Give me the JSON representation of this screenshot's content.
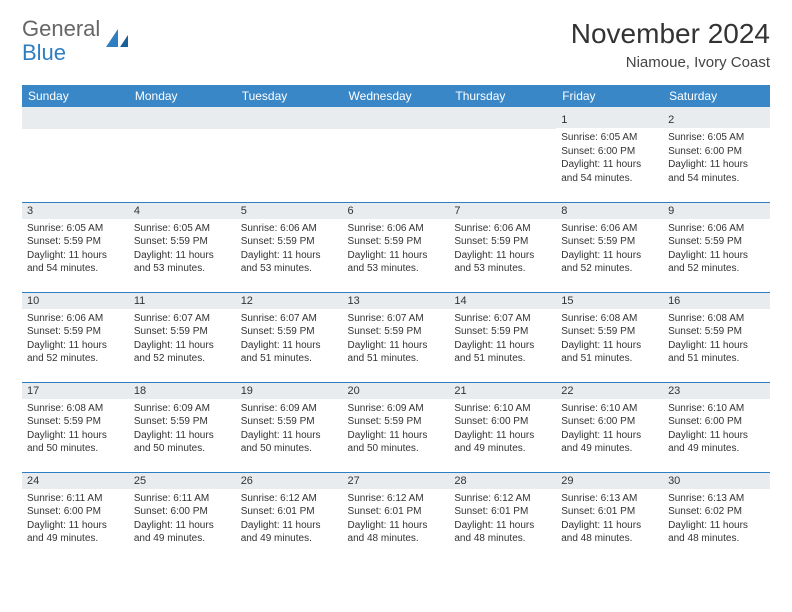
{
  "logo": {
    "general": "General",
    "blue": "Blue"
  },
  "title": "November 2024",
  "subtitle": "Niamoue, Ivory Coast",
  "colors": {
    "header_bg": "#3a87c8",
    "header_fg": "#ffffff",
    "daynum_bg": "#e9ecef",
    "cell_border": "#2f7ec2",
    "page_bg": "#ffffff",
    "text": "#333333",
    "logo_blue": "#2f7ec2",
    "logo_gray": "#666666"
  },
  "weekdays": [
    "Sunday",
    "Monday",
    "Tuesday",
    "Wednesday",
    "Thursday",
    "Friday",
    "Saturday"
  ],
  "weeks": [
    [
      {
        "n": "",
        "sr": "",
        "ss": "",
        "dl": ""
      },
      {
        "n": "",
        "sr": "",
        "ss": "",
        "dl": ""
      },
      {
        "n": "",
        "sr": "",
        "ss": "",
        "dl": ""
      },
      {
        "n": "",
        "sr": "",
        "ss": "",
        "dl": ""
      },
      {
        "n": "",
        "sr": "",
        "ss": "",
        "dl": ""
      },
      {
        "n": "1",
        "sr": "Sunrise: 6:05 AM",
        "ss": "Sunset: 6:00 PM",
        "dl": "Daylight: 11 hours and 54 minutes."
      },
      {
        "n": "2",
        "sr": "Sunrise: 6:05 AM",
        "ss": "Sunset: 6:00 PM",
        "dl": "Daylight: 11 hours and 54 minutes."
      }
    ],
    [
      {
        "n": "3",
        "sr": "Sunrise: 6:05 AM",
        "ss": "Sunset: 5:59 PM",
        "dl": "Daylight: 11 hours and 54 minutes."
      },
      {
        "n": "4",
        "sr": "Sunrise: 6:05 AM",
        "ss": "Sunset: 5:59 PM",
        "dl": "Daylight: 11 hours and 53 minutes."
      },
      {
        "n": "5",
        "sr": "Sunrise: 6:06 AM",
        "ss": "Sunset: 5:59 PM",
        "dl": "Daylight: 11 hours and 53 minutes."
      },
      {
        "n": "6",
        "sr": "Sunrise: 6:06 AM",
        "ss": "Sunset: 5:59 PM",
        "dl": "Daylight: 11 hours and 53 minutes."
      },
      {
        "n": "7",
        "sr": "Sunrise: 6:06 AM",
        "ss": "Sunset: 5:59 PM",
        "dl": "Daylight: 11 hours and 53 minutes."
      },
      {
        "n": "8",
        "sr": "Sunrise: 6:06 AM",
        "ss": "Sunset: 5:59 PM",
        "dl": "Daylight: 11 hours and 52 minutes."
      },
      {
        "n": "9",
        "sr": "Sunrise: 6:06 AM",
        "ss": "Sunset: 5:59 PM",
        "dl": "Daylight: 11 hours and 52 minutes."
      }
    ],
    [
      {
        "n": "10",
        "sr": "Sunrise: 6:06 AM",
        "ss": "Sunset: 5:59 PM",
        "dl": "Daylight: 11 hours and 52 minutes."
      },
      {
        "n": "11",
        "sr": "Sunrise: 6:07 AM",
        "ss": "Sunset: 5:59 PM",
        "dl": "Daylight: 11 hours and 52 minutes."
      },
      {
        "n": "12",
        "sr": "Sunrise: 6:07 AM",
        "ss": "Sunset: 5:59 PM",
        "dl": "Daylight: 11 hours and 51 minutes."
      },
      {
        "n": "13",
        "sr": "Sunrise: 6:07 AM",
        "ss": "Sunset: 5:59 PM",
        "dl": "Daylight: 11 hours and 51 minutes."
      },
      {
        "n": "14",
        "sr": "Sunrise: 6:07 AM",
        "ss": "Sunset: 5:59 PM",
        "dl": "Daylight: 11 hours and 51 minutes."
      },
      {
        "n": "15",
        "sr": "Sunrise: 6:08 AM",
        "ss": "Sunset: 5:59 PM",
        "dl": "Daylight: 11 hours and 51 minutes."
      },
      {
        "n": "16",
        "sr": "Sunrise: 6:08 AM",
        "ss": "Sunset: 5:59 PM",
        "dl": "Daylight: 11 hours and 51 minutes."
      }
    ],
    [
      {
        "n": "17",
        "sr": "Sunrise: 6:08 AM",
        "ss": "Sunset: 5:59 PM",
        "dl": "Daylight: 11 hours and 50 minutes."
      },
      {
        "n": "18",
        "sr": "Sunrise: 6:09 AM",
        "ss": "Sunset: 5:59 PM",
        "dl": "Daylight: 11 hours and 50 minutes."
      },
      {
        "n": "19",
        "sr": "Sunrise: 6:09 AM",
        "ss": "Sunset: 5:59 PM",
        "dl": "Daylight: 11 hours and 50 minutes."
      },
      {
        "n": "20",
        "sr": "Sunrise: 6:09 AM",
        "ss": "Sunset: 5:59 PM",
        "dl": "Daylight: 11 hours and 50 minutes."
      },
      {
        "n": "21",
        "sr": "Sunrise: 6:10 AM",
        "ss": "Sunset: 6:00 PM",
        "dl": "Daylight: 11 hours and 49 minutes."
      },
      {
        "n": "22",
        "sr": "Sunrise: 6:10 AM",
        "ss": "Sunset: 6:00 PM",
        "dl": "Daylight: 11 hours and 49 minutes."
      },
      {
        "n": "23",
        "sr": "Sunrise: 6:10 AM",
        "ss": "Sunset: 6:00 PM",
        "dl": "Daylight: 11 hours and 49 minutes."
      }
    ],
    [
      {
        "n": "24",
        "sr": "Sunrise: 6:11 AM",
        "ss": "Sunset: 6:00 PM",
        "dl": "Daylight: 11 hours and 49 minutes."
      },
      {
        "n": "25",
        "sr": "Sunrise: 6:11 AM",
        "ss": "Sunset: 6:00 PM",
        "dl": "Daylight: 11 hours and 49 minutes."
      },
      {
        "n": "26",
        "sr": "Sunrise: 6:12 AM",
        "ss": "Sunset: 6:01 PM",
        "dl": "Daylight: 11 hours and 49 minutes."
      },
      {
        "n": "27",
        "sr": "Sunrise: 6:12 AM",
        "ss": "Sunset: 6:01 PM",
        "dl": "Daylight: 11 hours and 48 minutes."
      },
      {
        "n": "28",
        "sr": "Sunrise: 6:12 AM",
        "ss": "Sunset: 6:01 PM",
        "dl": "Daylight: 11 hours and 48 minutes."
      },
      {
        "n": "29",
        "sr": "Sunrise: 6:13 AM",
        "ss": "Sunset: 6:01 PM",
        "dl": "Daylight: 11 hours and 48 minutes."
      },
      {
        "n": "30",
        "sr": "Sunrise: 6:13 AM",
        "ss": "Sunset: 6:02 PM",
        "dl": "Daylight: 11 hours and 48 minutes."
      }
    ]
  ]
}
